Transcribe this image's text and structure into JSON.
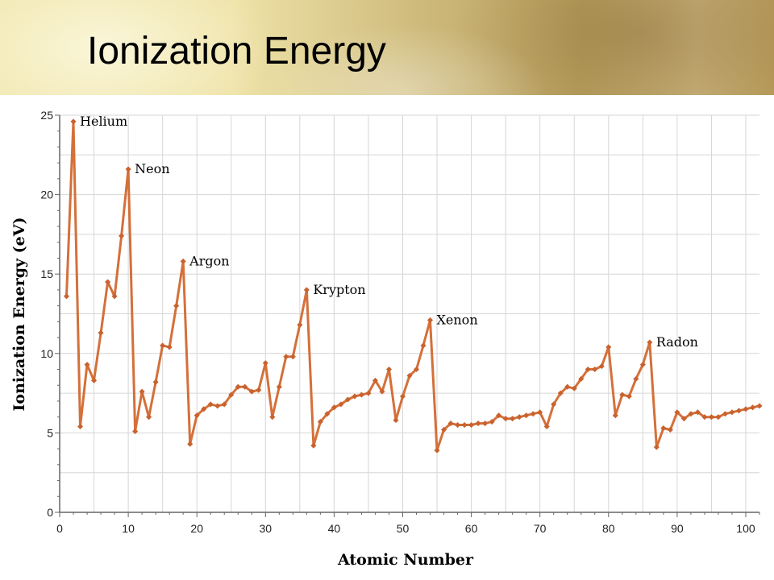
{
  "title": "Ionization Energy",
  "chart_data": {
    "type": "line",
    "xlabel": "Atomic Number",
    "ylabel": "Ionization Energy (eV)",
    "xlim": [
      0,
      102
    ],
    "ylim": [
      0,
      25
    ],
    "xticks": [
      0,
      10,
      20,
      30,
      40,
      50,
      60,
      70,
      80,
      90,
      100
    ],
    "yticks": [
      0,
      5,
      10,
      15,
      20,
      25
    ],
    "grid": true,
    "line_color": "#d4703a",
    "marker_color": "#c8622e",
    "series": [
      {
        "x": [
          1,
          2,
          3,
          4,
          5,
          6,
          7,
          8,
          9,
          10,
          11,
          12,
          13,
          14,
          15,
          16,
          17,
          18,
          19,
          20,
          21,
          22,
          23,
          24,
          25,
          26,
          27,
          28,
          29,
          30,
          31,
          32,
          33,
          34,
          35,
          36,
          37,
          38,
          39,
          40,
          41,
          42,
          43,
          44,
          45,
          46,
          47,
          48,
          49,
          50,
          51,
          52,
          53,
          54,
          55,
          56,
          57,
          58,
          59,
          60,
          61,
          62,
          63,
          64,
          65,
          66,
          67,
          68,
          69,
          70,
          71,
          72,
          73,
          74,
          75,
          76,
          77,
          78,
          79,
          80,
          81,
          82,
          83,
          84,
          85,
          86,
          87,
          88,
          89,
          90,
          91,
          92,
          93,
          94,
          95,
          96,
          97,
          98,
          99,
          100,
          101,
          102
        ],
        "values": [
          13.6,
          24.6,
          5.4,
          9.3,
          8.3,
          11.3,
          14.5,
          13.6,
          17.4,
          21.6,
          5.1,
          7.6,
          6.0,
          8.2,
          10.5,
          10.4,
          13.0,
          15.8,
          4.3,
          6.1,
          6.5,
          6.8,
          6.7,
          6.8,
          7.4,
          7.9,
          7.9,
          7.6,
          7.7,
          9.4,
          6.0,
          7.9,
          9.8,
          9.8,
          11.8,
          14.0,
          4.2,
          5.7,
          6.2,
          6.6,
          6.8,
          7.1,
          7.3,
          7.4,
          7.5,
          8.3,
          7.6,
          9.0,
          5.8,
          7.3,
          8.6,
          9.0,
          10.5,
          12.1,
          3.9,
          5.2,
          5.6,
          5.5,
          5.5,
          5.5,
          5.6,
          5.6,
          5.7,
          6.1,
          5.9,
          5.9,
          6.0,
          6.1,
          6.2,
          6.3,
          5.4,
          6.8,
          7.5,
          7.9,
          7.8,
          8.4,
          9.0,
          9.0,
          9.2,
          10.4,
          6.1,
          7.4,
          7.3,
          8.4,
          9.3,
          10.7,
          4.1,
          5.3,
          5.2,
          6.3,
          5.9,
          6.2,
          6.3,
          6.0,
          6.0,
          6.0,
          6.2,
          6.3,
          6.4,
          6.5,
          6.6,
          6.7
        ]
      }
    ],
    "annotations": [
      {
        "label": "Helium",
        "x": 2,
        "y": 24.6
      },
      {
        "label": "Neon",
        "x": 10,
        "y": 21.6
      },
      {
        "label": "Argon",
        "x": 18,
        "y": 15.8
      },
      {
        "label": "Krypton",
        "x": 36,
        "y": 14.0
      },
      {
        "label": "Xenon",
        "x": 54,
        "y": 12.1
      },
      {
        "label": "Radon",
        "x": 86,
        "y": 10.7
      }
    ]
  }
}
